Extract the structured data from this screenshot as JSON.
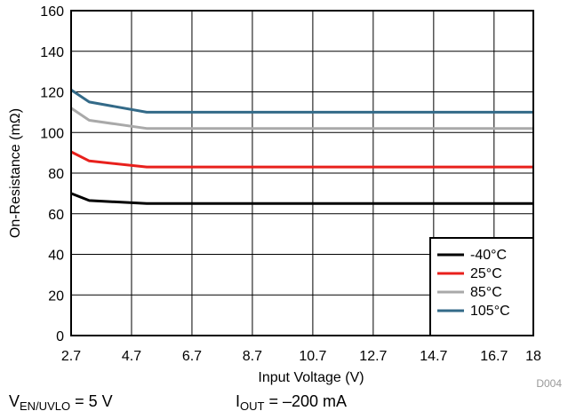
{
  "chart_data": {
    "type": "line",
    "xlabel": "Input Voltage (V)",
    "ylabel": "On-Resistance (mΩ)",
    "xlim": [
      2.7,
      18
    ],
    "ylim": [
      0,
      160
    ],
    "x_ticks": [
      2.7,
      4.7,
      6.7,
      8.7,
      10.7,
      12.7,
      14.7,
      16.7,
      18
    ],
    "y_ticks": [
      0,
      20,
      40,
      60,
      80,
      100,
      120,
      140,
      160
    ],
    "grid": true,
    "legend_position": "bottom-right",
    "series": [
      {
        "name": "-40°C",
        "color": "#000000",
        "x": [
          2.7,
          3.3,
          5.2,
          18
        ],
        "y": [
          70,
          66.5,
          65,
          65
        ]
      },
      {
        "name": "25°C",
        "color": "#e8201c",
        "x": [
          2.7,
          3.3,
          5.2,
          18
        ],
        "y": [
          90.5,
          86,
          83,
          83
        ]
      },
      {
        "name": "85°C",
        "color": "#a9a9a9",
        "x": [
          2.7,
          3.3,
          5.2,
          18
        ],
        "y": [
          112,
          106,
          102,
          102
        ]
      },
      {
        "name": "105°C",
        "color": "#336a88",
        "x": [
          2.7,
          3.3,
          5.2,
          18
        ],
        "y": [
          121,
          115,
          110,
          110
        ]
      }
    ]
  },
  "figure_id": "D004",
  "conditions": {
    "left": {
      "var": "V",
      "sub": "EN/UVLO",
      "value": " = 5 V"
    },
    "right": {
      "var": "I",
      "sub": "OUT",
      "value": " = –200 mA"
    }
  }
}
